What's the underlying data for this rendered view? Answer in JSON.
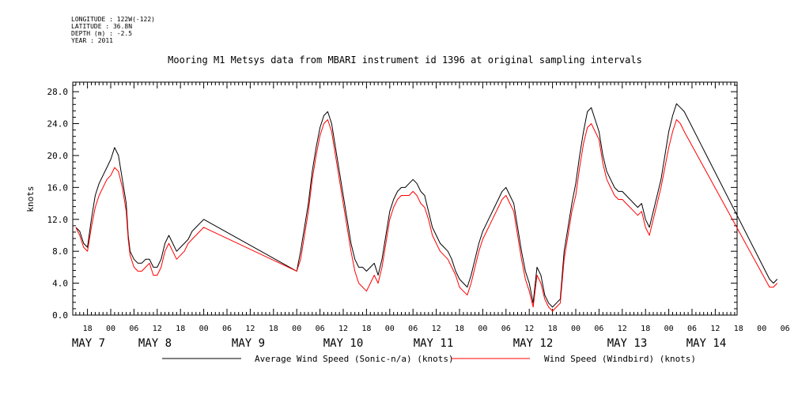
{
  "metadata": {
    "longitude": "LONGITUDE : 122W(-122)",
    "latitude": "LATITUDE : 36.8N",
    "depth": "DEPTH (m) : -2.5",
    "year": "YEAR : 2011"
  },
  "chart_data": {
    "type": "line",
    "title": "Mooring M1 Metsys data from MBARI instrument id 1396 at original sampling intervals",
    "ylabel": "knots",
    "xlabel": "",
    "ylim": [
      0,
      29.2
    ],
    "yticks": [
      "0.0",
      "4.0",
      "8.0",
      "12.0",
      "16.0",
      "20.0",
      "24.0",
      "28.0"
    ],
    "xlim_hours": [
      0,
      172
    ],
    "x_unit": "hours since May 7 00:00 (2011)",
    "hour_ticks": [
      "18",
      "00",
      "06",
      "12",
      "18",
      "00",
      "06",
      "12",
      "18",
      "00",
      "06",
      "12",
      "18",
      "00",
      "06",
      "12",
      "18",
      "00",
      "06",
      "12",
      "18",
      "00",
      "06",
      "12",
      "18",
      "00",
      "06",
      "12",
      "18",
      "00",
      "06",
      "12"
    ],
    "day_labels": [
      "MAY  7",
      "MAY  8",
      "MAY  9",
      "MAY 10",
      "MAY 11",
      "MAY 12",
      "MAY 13",
      "MAY 14"
    ],
    "grid": false,
    "legend_position": "bottom",
    "series": [
      {
        "name": "Average Wind Speed (Sonic-n/a) (knots)",
        "color": "#000000",
        "points": [
          [
            -9,
            11
          ],
          [
            -8,
            10.5
          ],
          [
            -7,
            9
          ],
          [
            -6,
            8.5
          ],
          [
            -5,
            12
          ],
          [
            -4,
            15
          ],
          [
            -3,
            16.5
          ],
          [
            -2,
            17.5
          ],
          [
            -1,
            18.5
          ],
          [
            0,
            19.5
          ],
          [
            1,
            21
          ],
          [
            2,
            20
          ],
          [
            3,
            17
          ],
          [
            4,
            14
          ],
          [
            4.5,
            10
          ],
          [
            5,
            8
          ],
          [
            6,
            7
          ],
          [
            7,
            6.5
          ],
          [
            8,
            6.5
          ],
          [
            9,
            7
          ],
          [
            10,
            7
          ],
          [
            11,
            6
          ],
          [
            12,
            6
          ],
          [
            13,
            7
          ],
          [
            14,
            9
          ],
          [
            15,
            10
          ],
          [
            16,
            9
          ],
          [
            17,
            8
          ],
          [
            18,
            8.5
          ],
          [
            19,
            9
          ],
          [
            20,
            9.5
          ],
          [
            21,
            10.5
          ],
          [
            22,
            11
          ],
          [
            23,
            11.5
          ],
          [
            24,
            12
          ],
          [
            48,
            5.5
          ],
          [
            49,
            8
          ],
          [
            50,
            11
          ],
          [
            51,
            14
          ],
          [
            52,
            18
          ],
          [
            53,
            21
          ],
          [
            54,
            23.5
          ],
          [
            55,
            25
          ],
          [
            56,
            25.5
          ],
          [
            57,
            24
          ],
          [
            58,
            21
          ],
          [
            59,
            18
          ],
          [
            60,
            15
          ],
          [
            61,
            12
          ],
          [
            62,
            9
          ],
          [
            63,
            7
          ],
          [
            64,
            6
          ],
          [
            65,
            6
          ],
          [
            66,
            5.5
          ],
          [
            67,
            6
          ],
          [
            68,
            6.5
          ],
          [
            69,
            5
          ],
          [
            70,
            7
          ],
          [
            71,
            10
          ],
          [
            72,
            13
          ],
          [
            73,
            14.5
          ],
          [
            74,
            15.5
          ],
          [
            75,
            16
          ],
          [
            76,
            16
          ],
          [
            77,
            16.5
          ],
          [
            78,
            17
          ],
          [
            79,
            16.5
          ],
          [
            80,
            15.5
          ],
          [
            81,
            15
          ],
          [
            82,
            13
          ],
          [
            83,
            11
          ],
          [
            84,
            10
          ],
          [
            85,
            9
          ],
          [
            86,
            8.5
          ],
          [
            87,
            8
          ],
          [
            88,
            7
          ],
          [
            89,
            5.5
          ],
          [
            90,
            4.5
          ],
          [
            91,
            4
          ],
          [
            92,
            3.5
          ],
          [
            93,
            5
          ],
          [
            94,
            7
          ],
          [
            95,
            9
          ],
          [
            96,
            10.5
          ],
          [
            97,
            11.5
          ],
          [
            98,
            12.5
          ],
          [
            99,
            13.5
          ],
          [
            100,
            14.5
          ],
          [
            101,
            15.5
          ],
          [
            102,
            16
          ],
          [
            103,
            15
          ],
          [
            104,
            14
          ],
          [
            105,
            11
          ],
          [
            106,
            8
          ],
          [
            107,
            5.5
          ],
          [
            108,
            4
          ],
          [
            109,
            1.5
          ],
          [
            110,
            6
          ],
          [
            111,
            5
          ],
          [
            112,
            2.5
          ],
          [
            113,
            1.5
          ],
          [
            114,
            1
          ],
          [
            115,
            1.5
          ],
          [
            116,
            2
          ],
          [
            117,
            8
          ],
          [
            118,
            11
          ],
          [
            119,
            14
          ],
          [
            120,
            16.5
          ],
          [
            121,
            20
          ],
          [
            122,
            23
          ],
          [
            123,
            25.5
          ],
          [
            124,
            26
          ],
          [
            125,
            24.5
          ],
          [
            126,
            23
          ],
          [
            127,
            20
          ],
          [
            128,
            18
          ],
          [
            129,
            17
          ],
          [
            130,
            16
          ],
          [
            131,
            15.5
          ],
          [
            132,
            15.5
          ],
          [
            133,
            15
          ],
          [
            134,
            14.5
          ],
          [
            135,
            14
          ],
          [
            136,
            13.5
          ],
          [
            137,
            14
          ],
          [
            138,
            12
          ],
          [
            139,
            11
          ],
          [
            140,
            13
          ],
          [
            141,
            15
          ],
          [
            142,
            17
          ],
          [
            143,
            20
          ],
          [
            144,
            23
          ],
          [
            145,
            25
          ],
          [
            146,
            26.5
          ],
          [
            147,
            26
          ],
          [
            148,
            25.5
          ],
          [
            170,
            4.5
          ],
          [
            171,
            4
          ],
          [
            172,
            4.5
          ]
        ]
      },
      {
        "name": "Wind Speed (Windbird) (knots)",
        "color": "#ff0000",
        "points": [
          [
            -9,
            11
          ],
          [
            -8,
            10
          ],
          [
            -7,
            8.5
          ],
          [
            -6,
            8
          ],
          [
            -5,
            11
          ],
          [
            -4,
            13.5
          ],
          [
            -3,
            15
          ],
          [
            -2,
            16
          ],
          [
            -1,
            17
          ],
          [
            0,
            17.5
          ],
          [
            1,
            18.5
          ],
          [
            2,
            18
          ],
          [
            3,
            16
          ],
          [
            4,
            13
          ],
          [
            4.5,
            9.5
          ],
          [
            5,
            7.5
          ],
          [
            6,
            6
          ],
          [
            7,
            5.5
          ],
          [
            8,
            5.5
          ],
          [
            9,
            6
          ],
          [
            10,
            6.5
          ],
          [
            11,
            5
          ],
          [
            12,
            5
          ],
          [
            13,
            6
          ],
          [
            14,
            8
          ],
          [
            15,
            9
          ],
          [
            16,
            8
          ],
          [
            17,
            7
          ],
          [
            18,
            7.5
          ],
          [
            19,
            8
          ],
          [
            20,
            9
          ],
          [
            21,
            9.5
          ],
          [
            22,
            10
          ],
          [
            23,
            10.5
          ],
          [
            24,
            11
          ],
          [
            48,
            5.5
          ],
          [
            49,
            7
          ],
          [
            50,
            10
          ],
          [
            51,
            13
          ],
          [
            52,
            17
          ],
          [
            53,
            20
          ],
          [
            54,
            22.5
          ],
          [
            55,
            24
          ],
          [
            56,
            24.5
          ],
          [
            57,
            23
          ],
          [
            58,
            20
          ],
          [
            59,
            17
          ],
          [
            60,
            14
          ],
          [
            61,
            11
          ],
          [
            62,
            8
          ],
          [
            63,
            5.5
          ],
          [
            64,
            4
          ],
          [
            65,
            3.5
          ],
          [
            66,
            3
          ],
          [
            67,
            4
          ],
          [
            68,
            5
          ],
          [
            69,
            4
          ],
          [
            70,
            6
          ],
          [
            71,
            9
          ],
          [
            72,
            12
          ],
          [
            73,
            13.5
          ],
          [
            74,
            14.5
          ],
          [
            75,
            15
          ],
          [
            76,
            15
          ],
          [
            77,
            15
          ],
          [
            78,
            15.5
          ],
          [
            79,
            15
          ],
          [
            80,
            14
          ],
          [
            81,
            13.5
          ],
          [
            82,
            12
          ],
          [
            83,
            10
          ],
          [
            84,
            9
          ],
          [
            85,
            8
          ],
          [
            86,
            7.5
          ],
          [
            87,
            7
          ],
          [
            88,
            6
          ],
          [
            89,
            5
          ],
          [
            90,
            3.5
          ],
          [
            91,
            3
          ],
          [
            92,
            2.5
          ],
          [
            93,
            4
          ],
          [
            94,
            6
          ],
          [
            95,
            8
          ],
          [
            96,
            9.5
          ],
          [
            97,
            10.5
          ],
          [
            98,
            11.5
          ],
          [
            99,
            12.5
          ],
          [
            100,
            13.5
          ],
          [
            101,
            14.5
          ],
          [
            102,
            15
          ],
          [
            103,
            14
          ],
          [
            104,
            13
          ],
          [
            105,
            10
          ],
          [
            106,
            7
          ],
          [
            107,
            4.5
          ],
          [
            108,
            3
          ],
          [
            109,
            1
          ],
          [
            110,
            5
          ],
          [
            111,
            4
          ],
          [
            112,
            2
          ],
          [
            113,
            1
          ],
          [
            114,
            0.5
          ],
          [
            115,
            1
          ],
          [
            116,
            1.5
          ],
          [
            117,
            7
          ],
          [
            118,
            10
          ],
          [
            119,
            13
          ],
          [
            120,
            15
          ],
          [
            121,
            18.5
          ],
          [
            122,
            21.5
          ],
          [
            123,
            23.5
          ],
          [
            124,
            24
          ],
          [
            125,
            23
          ],
          [
            126,
            22
          ],
          [
            127,
            19
          ],
          [
            128,
            17
          ],
          [
            129,
            16
          ],
          [
            130,
            15
          ],
          [
            131,
            14.5
          ],
          [
            132,
            14.5
          ],
          [
            133,
            14
          ],
          [
            134,
            13.5
          ],
          [
            135,
            13
          ],
          [
            136,
            12.5
          ],
          [
            137,
            13
          ],
          [
            138,
            11
          ],
          [
            139,
            10
          ],
          [
            140,
            12
          ],
          [
            141,
            14
          ],
          [
            142,
            16
          ],
          [
            143,
            18.5
          ],
          [
            144,
            21
          ],
          [
            145,
            23
          ],
          [
            146,
            24.5
          ],
          [
            147,
            24
          ],
          [
            148,
            23
          ],
          [
            170,
            3.5
          ],
          [
            171,
            3.5
          ],
          [
            172,
            4
          ]
        ]
      }
    ]
  }
}
